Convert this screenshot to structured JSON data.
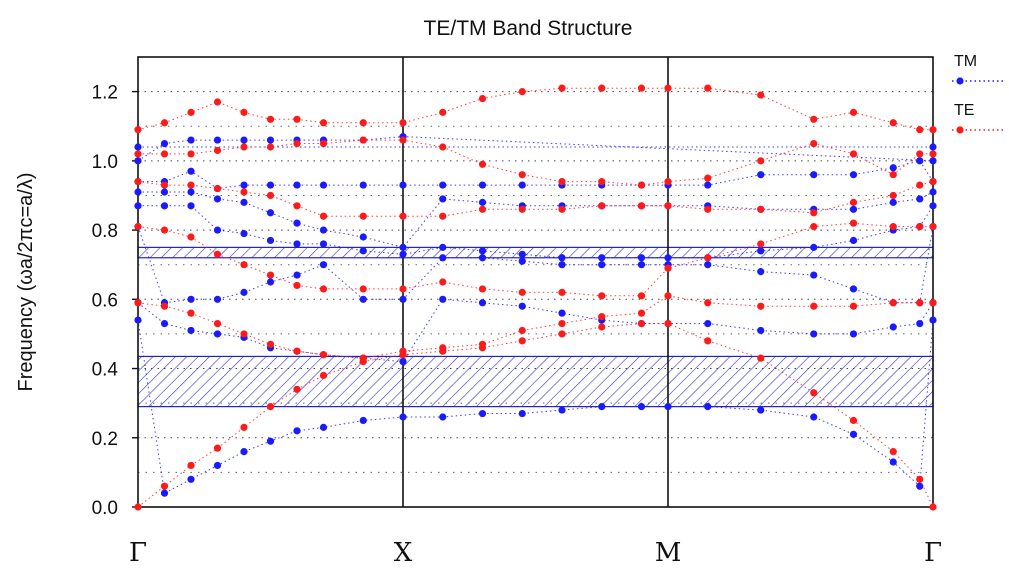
{
  "chart_data": {
    "type": "scatter",
    "title": "TE/TM Band Structure",
    "ylabel": "Frequency (ωa/2πc=a/λ)",
    "xlabel": "",
    "x_ticks": [
      "Γ",
      "X",
      "M",
      "Γ"
    ],
    "y_ticks": [
      "0.0",
      "0.2",
      "0.4",
      "0.6",
      "0.8",
      "1.0",
      "1.2"
    ],
    "ylim": [
      0,
      1.3
    ],
    "x_positions": [
      0,
      1,
      2,
      3
    ],
    "grid": "horizontal dotted",
    "legend_position": "right",
    "band_gaps": [
      {
        "ymin": 0.29,
        "ymax": 0.435
      },
      {
        "ymin": 0.72,
        "ymax": 0.75
      }
    ],
    "series": [
      {
        "name": "TM",
        "color": "#1a1aff",
        "points": [
          [
            0,
            0.54
          ],
          [
            0,
            0.59
          ],
          [
            0,
            0.81
          ],
          [
            0,
            0.87
          ],
          [
            0,
            0.91
          ],
          [
            0,
            0.94
          ],
          [
            0,
            1.0
          ],
          [
            0,
            1.04
          ],
          [
            0.1,
            0.04
          ],
          [
            0.1,
            0.53
          ],
          [
            0.1,
            0.59
          ],
          [
            0.1,
            0.87
          ],
          [
            0.1,
            0.91
          ],
          [
            0.1,
            0.94
          ],
          [
            0.1,
            1.05
          ],
          [
            0.2,
            0.08
          ],
          [
            0.2,
            0.51
          ],
          [
            0.2,
            0.6
          ],
          [
            0.2,
            0.87
          ],
          [
            0.2,
            0.91
          ],
          [
            0.2,
            0.97
          ],
          [
            0.2,
            1.06
          ],
          [
            0.3,
            0.12
          ],
          [
            0.3,
            0.5
          ],
          [
            0.3,
            0.6
          ],
          [
            0.3,
            0.8
          ],
          [
            0.3,
            0.89
          ],
          [
            0.3,
            0.92
          ],
          [
            0.3,
            1.06
          ],
          [
            0.4,
            0.16
          ],
          [
            0.4,
            0.49
          ],
          [
            0.4,
            0.62
          ],
          [
            0.4,
            0.79
          ],
          [
            0.4,
            0.88
          ],
          [
            0.4,
            0.93
          ],
          [
            0.4,
            1.06
          ],
          [
            0.5,
            0.19
          ],
          [
            0.5,
            0.46
          ],
          [
            0.5,
            0.65
          ],
          [
            0.5,
            0.77
          ],
          [
            0.5,
            0.85
          ],
          [
            0.5,
            0.93
          ],
          [
            0.5,
            1.06
          ],
          [
            0.6,
            0.22
          ],
          [
            0.6,
            0.45
          ],
          [
            0.6,
            0.67
          ],
          [
            0.6,
            0.76
          ],
          [
            0.6,
            0.82
          ],
          [
            0.6,
            0.93
          ],
          [
            0.6,
            1.06
          ],
          [
            0.7,
            0.23
          ],
          [
            0.7,
            0.44
          ],
          [
            0.7,
            0.7
          ],
          [
            0.7,
            0.76
          ],
          [
            0.7,
            0.8
          ],
          [
            0.7,
            0.93
          ],
          [
            0.7,
            1.06
          ],
          [
            0.85,
            0.25
          ],
          [
            0.85,
            0.43
          ],
          [
            0.85,
            0.6
          ],
          [
            0.85,
            0.74
          ],
          [
            0.85,
            0.78
          ],
          [
            0.85,
            0.93
          ],
          [
            0.85,
            1.06
          ],
          [
            1,
            0.26
          ],
          [
            1,
            0.42
          ],
          [
            1,
            0.6
          ],
          [
            1,
            0.73
          ],
          [
            1,
            0.75
          ],
          [
            1,
            0.93
          ],
          [
            1,
            1.07
          ],
          [
            1.15,
            0.26
          ],
          [
            1.15,
            0.6
          ],
          [
            1.15,
            0.72
          ],
          [
            1.15,
            0.75
          ],
          [
            1.15,
            0.89
          ],
          [
            1.15,
            0.93
          ],
          [
            1.3,
            0.27
          ],
          [
            1.3,
            0.59
          ],
          [
            1.3,
            0.72
          ],
          [
            1.3,
            0.74
          ],
          [
            1.3,
            0.88
          ],
          [
            1.3,
            0.93
          ],
          [
            1.45,
            0.27
          ],
          [
            1.45,
            0.58
          ],
          [
            1.45,
            0.71
          ],
          [
            1.45,
            0.73
          ],
          [
            1.45,
            0.87
          ],
          [
            1.45,
            0.93
          ],
          [
            1.6,
            0.28
          ],
          [
            1.6,
            0.56
          ],
          [
            1.6,
            0.7
          ],
          [
            1.6,
            0.72
          ],
          [
            1.6,
            0.87
          ],
          [
            1.6,
            0.93
          ],
          [
            1.75,
            0.29
          ],
          [
            1.75,
            0.54
          ],
          [
            1.75,
            0.7
          ],
          [
            1.75,
            0.72
          ],
          [
            1.75,
            0.87
          ],
          [
            1.75,
            0.93
          ],
          [
            1.9,
            0.29
          ],
          [
            1.9,
            0.53
          ],
          [
            1.9,
            0.7
          ],
          [
            1.9,
            0.72
          ],
          [
            1.9,
            0.87
          ],
          [
            1.9,
            0.93
          ],
          [
            2,
            0.29
          ],
          [
            2,
            0.53
          ],
          [
            2,
            0.7
          ],
          [
            2,
            0.72
          ],
          [
            2,
            0.87
          ],
          [
            2,
            0.93
          ],
          [
            2.15,
            0.29
          ],
          [
            2.15,
            0.53
          ],
          [
            2.15,
            0.7
          ],
          [
            2.15,
            0.72
          ],
          [
            2.15,
            0.87
          ],
          [
            2.15,
            0.93
          ],
          [
            2.35,
            0.28
          ],
          [
            2.35,
            0.51
          ],
          [
            2.35,
            0.68
          ],
          [
            2.35,
            0.74
          ],
          [
            2.35,
            0.86
          ],
          [
            2.35,
            0.96
          ],
          [
            2.55,
            0.26
          ],
          [
            2.55,
            0.5
          ],
          [
            2.55,
            0.67
          ],
          [
            2.55,
            0.75
          ],
          [
            2.55,
            0.86
          ],
          [
            2.55,
            0.96
          ],
          [
            2.7,
            0.21
          ],
          [
            2.7,
            0.5
          ],
          [
            2.7,
            0.63
          ],
          [
            2.7,
            0.77
          ],
          [
            2.7,
            0.86
          ],
          [
            2.7,
            0.96
          ],
          [
            2.85,
            0.13
          ],
          [
            2.85,
            0.52
          ],
          [
            2.85,
            0.59
          ],
          [
            2.85,
            0.8
          ],
          [
            2.85,
            0.88
          ],
          [
            2.85,
            0.98
          ],
          [
            2.95,
            0.06
          ],
          [
            2.95,
            0.53
          ],
          [
            2.95,
            0.59
          ],
          [
            2.95,
            0.81
          ],
          [
            2.95,
            0.89
          ],
          [
            2.95,
            1.0
          ],
          [
            3,
            0.54
          ],
          [
            3,
            0.59
          ],
          [
            3,
            0.81
          ],
          [
            3,
            0.87
          ],
          [
            3,
            0.91
          ],
          [
            3,
            0.94
          ],
          [
            3,
            1.0
          ],
          [
            3,
            1.04
          ]
        ]
      },
      {
        "name": "TE",
        "color": "#ff1a1a",
        "points": [
          [
            0,
            0.0
          ],
          [
            0,
            0.59
          ],
          [
            0,
            0.81
          ],
          [
            0,
            0.94
          ],
          [
            0,
            1.02
          ],
          [
            0,
            1.09
          ],
          [
            0.1,
            0.06
          ],
          [
            0.1,
            0.58
          ],
          [
            0.1,
            0.8
          ],
          [
            0.1,
            0.93
          ],
          [
            0.1,
            1.02
          ],
          [
            0.1,
            1.11
          ],
          [
            0.2,
            0.12
          ],
          [
            0.2,
            0.56
          ],
          [
            0.2,
            0.78
          ],
          [
            0.2,
            0.93
          ],
          [
            0.2,
            1.02
          ],
          [
            0.2,
            1.14
          ],
          [
            0.3,
            0.17
          ],
          [
            0.3,
            0.53
          ],
          [
            0.3,
            0.73
          ],
          [
            0.3,
            0.92
          ],
          [
            0.3,
            1.03
          ],
          [
            0.3,
            1.17
          ],
          [
            0.4,
            0.23
          ],
          [
            0.4,
            0.5
          ],
          [
            0.4,
            0.7
          ],
          [
            0.4,
            0.91
          ],
          [
            0.4,
            1.04
          ],
          [
            0.4,
            1.14
          ],
          [
            0.5,
            0.29
          ],
          [
            0.5,
            0.47
          ],
          [
            0.5,
            0.67
          ],
          [
            0.5,
            0.9
          ],
          [
            0.5,
            1.04
          ],
          [
            0.5,
            1.12
          ],
          [
            0.6,
            0.34
          ],
          [
            0.6,
            0.45
          ],
          [
            0.6,
            0.64
          ],
          [
            0.6,
            0.87
          ],
          [
            0.6,
            1.05
          ],
          [
            0.6,
            1.12
          ],
          [
            0.7,
            0.38
          ],
          [
            0.7,
            0.44
          ],
          [
            0.7,
            0.63
          ],
          [
            0.7,
            0.84
          ],
          [
            0.7,
            1.05
          ],
          [
            0.7,
            1.11
          ],
          [
            0.85,
            0.42
          ],
          [
            0.85,
            0.43
          ],
          [
            0.85,
            0.63
          ],
          [
            0.85,
            0.84
          ],
          [
            0.85,
            1.06
          ],
          [
            0.85,
            1.11
          ],
          [
            1,
            0.44
          ],
          [
            1,
            0.45
          ],
          [
            1,
            0.63
          ],
          [
            1,
            0.84
          ],
          [
            1,
            1.06
          ],
          [
            1,
            1.11
          ],
          [
            1.15,
            0.45
          ],
          [
            1.15,
            0.46
          ],
          [
            1.15,
            0.65
          ],
          [
            1.15,
            0.84
          ],
          [
            1.15,
            1.04
          ],
          [
            1.15,
            1.14
          ],
          [
            1.3,
            0.46
          ],
          [
            1.3,
            0.47
          ],
          [
            1.3,
            0.63
          ],
          [
            1.3,
            0.86
          ],
          [
            1.3,
            0.99
          ],
          [
            1.3,
            1.18
          ],
          [
            1.45,
            0.48
          ],
          [
            1.45,
            0.51
          ],
          [
            1.45,
            0.62
          ],
          [
            1.45,
            0.86
          ],
          [
            1.45,
            0.96
          ],
          [
            1.45,
            1.2
          ],
          [
            1.6,
            0.5
          ],
          [
            1.6,
            0.53
          ],
          [
            1.6,
            0.62
          ],
          [
            1.6,
            0.86
          ],
          [
            1.6,
            0.94
          ],
          [
            1.6,
            1.21
          ],
          [
            1.75,
            0.52
          ],
          [
            1.75,
            0.55
          ],
          [
            1.75,
            0.61
          ],
          [
            1.75,
            0.87
          ],
          [
            1.75,
            0.94
          ],
          [
            1.75,
            1.21
          ],
          [
            1.9,
            0.53
          ],
          [
            1.9,
            0.56
          ],
          [
            1.9,
            0.61
          ],
          [
            1.9,
            0.87
          ],
          [
            1.9,
            0.93
          ],
          [
            1.9,
            1.21
          ],
          [
            2,
            0.53
          ],
          [
            2,
            0.61
          ],
          [
            2,
            0.69
          ],
          [
            2,
            0.87
          ],
          [
            2,
            0.94
          ],
          [
            2,
            1.21
          ],
          [
            2.15,
            0.48
          ],
          [
            2.15,
            0.59
          ],
          [
            2.15,
            0.72
          ],
          [
            2.15,
            0.86
          ],
          [
            2.15,
            0.95
          ],
          [
            2.15,
            1.21
          ],
          [
            2.35,
            0.43
          ],
          [
            2.35,
            0.58
          ],
          [
            2.35,
            0.76
          ],
          [
            2.35,
            0.86
          ],
          [
            2.35,
            1.0
          ],
          [
            2.35,
            1.19
          ],
          [
            2.55,
            0.33
          ],
          [
            2.55,
            0.58
          ],
          [
            2.55,
            0.81
          ],
          [
            2.55,
            0.85
          ],
          [
            2.55,
            1.05
          ],
          [
            2.55,
            1.12
          ],
          [
            2.7,
            0.25
          ],
          [
            2.7,
            0.58
          ],
          [
            2.7,
            0.82
          ],
          [
            2.7,
            0.88
          ],
          [
            2.7,
            1.02
          ],
          [
            2.7,
            1.14
          ],
          [
            2.85,
            0.16
          ],
          [
            2.85,
            0.59
          ],
          [
            2.85,
            0.81
          ],
          [
            2.85,
            0.9
          ],
          [
            2.85,
            0.96
          ],
          [
            2.85,
            1.11
          ],
          [
            2.95,
            0.08
          ],
          [
            2.95,
            0.59
          ],
          [
            2.95,
            0.81
          ],
          [
            2.95,
            0.93
          ],
          [
            2.95,
            1.02
          ],
          [
            2.95,
            1.09
          ],
          [
            3,
            0.0
          ],
          [
            3,
            0.59
          ],
          [
            3,
            0.81
          ],
          [
            3,
            0.94
          ],
          [
            3,
            1.02
          ],
          [
            3,
            1.09
          ]
        ]
      }
    ]
  }
}
